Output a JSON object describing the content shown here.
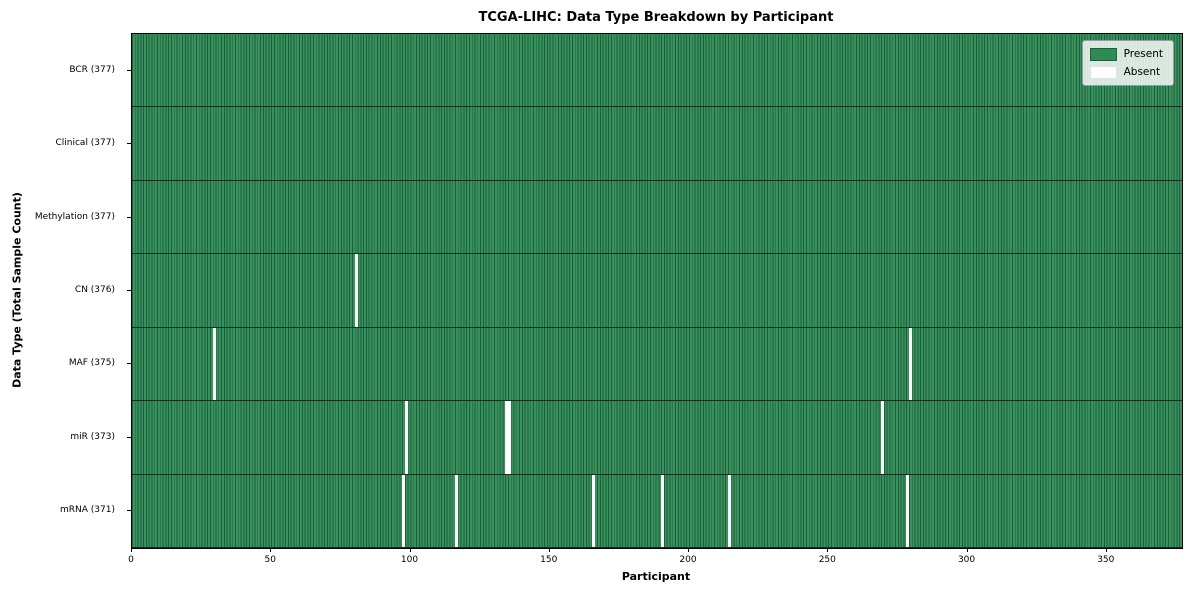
{
  "chart_data": {
    "type": "heatmap",
    "title": "TCGA-LIHC: Data Type Breakdown by Participant",
    "xlabel": "Participant",
    "ylabel": "Data Type (Total Sample Count)",
    "x_range": [
      0,
      377
    ],
    "x_ticks": [
      0,
      50,
      100,
      150,
      200,
      250,
      300,
      350
    ],
    "grid": false,
    "legend_position": "upper right",
    "colors": {
      "present": "#2e8b57",
      "present_fill": "#37925e",
      "cell_edge": "#1d5e3b",
      "absent": "#ffffff",
      "row_divider": "#12301f",
      "frame": "#000000"
    },
    "legend": [
      {
        "label": "Present",
        "color": "#2e8b57"
      },
      {
        "label": "Absent",
        "color": "#ffffff"
      }
    ],
    "rows": [
      {
        "name": "BCR",
        "label": "BCR (377)",
        "total": 377,
        "absent_participants": []
      },
      {
        "name": "Clinical",
        "label": "Clinical (377)",
        "total": 377,
        "absent_participants": []
      },
      {
        "name": "Methylation",
        "label": "Methylation (377)",
        "total": 377,
        "absent_participants": []
      },
      {
        "name": "CN",
        "label": "CN (376)",
        "total": 376,
        "absent_participants": [
          80
        ]
      },
      {
        "name": "MAF",
        "label": "MAF (375)",
        "total": 375,
        "absent_participants": [
          29,
          279
        ]
      },
      {
        "name": "miR",
        "label": "miR (373)",
        "total": 373,
        "absent_participants": [
          98,
          134,
          135,
          269
        ]
      },
      {
        "name": "mRNA",
        "label": "mRNA (371)",
        "total": 371,
        "absent_participants": [
          97,
          116,
          165,
          190,
          214,
          278
        ]
      }
    ]
  }
}
